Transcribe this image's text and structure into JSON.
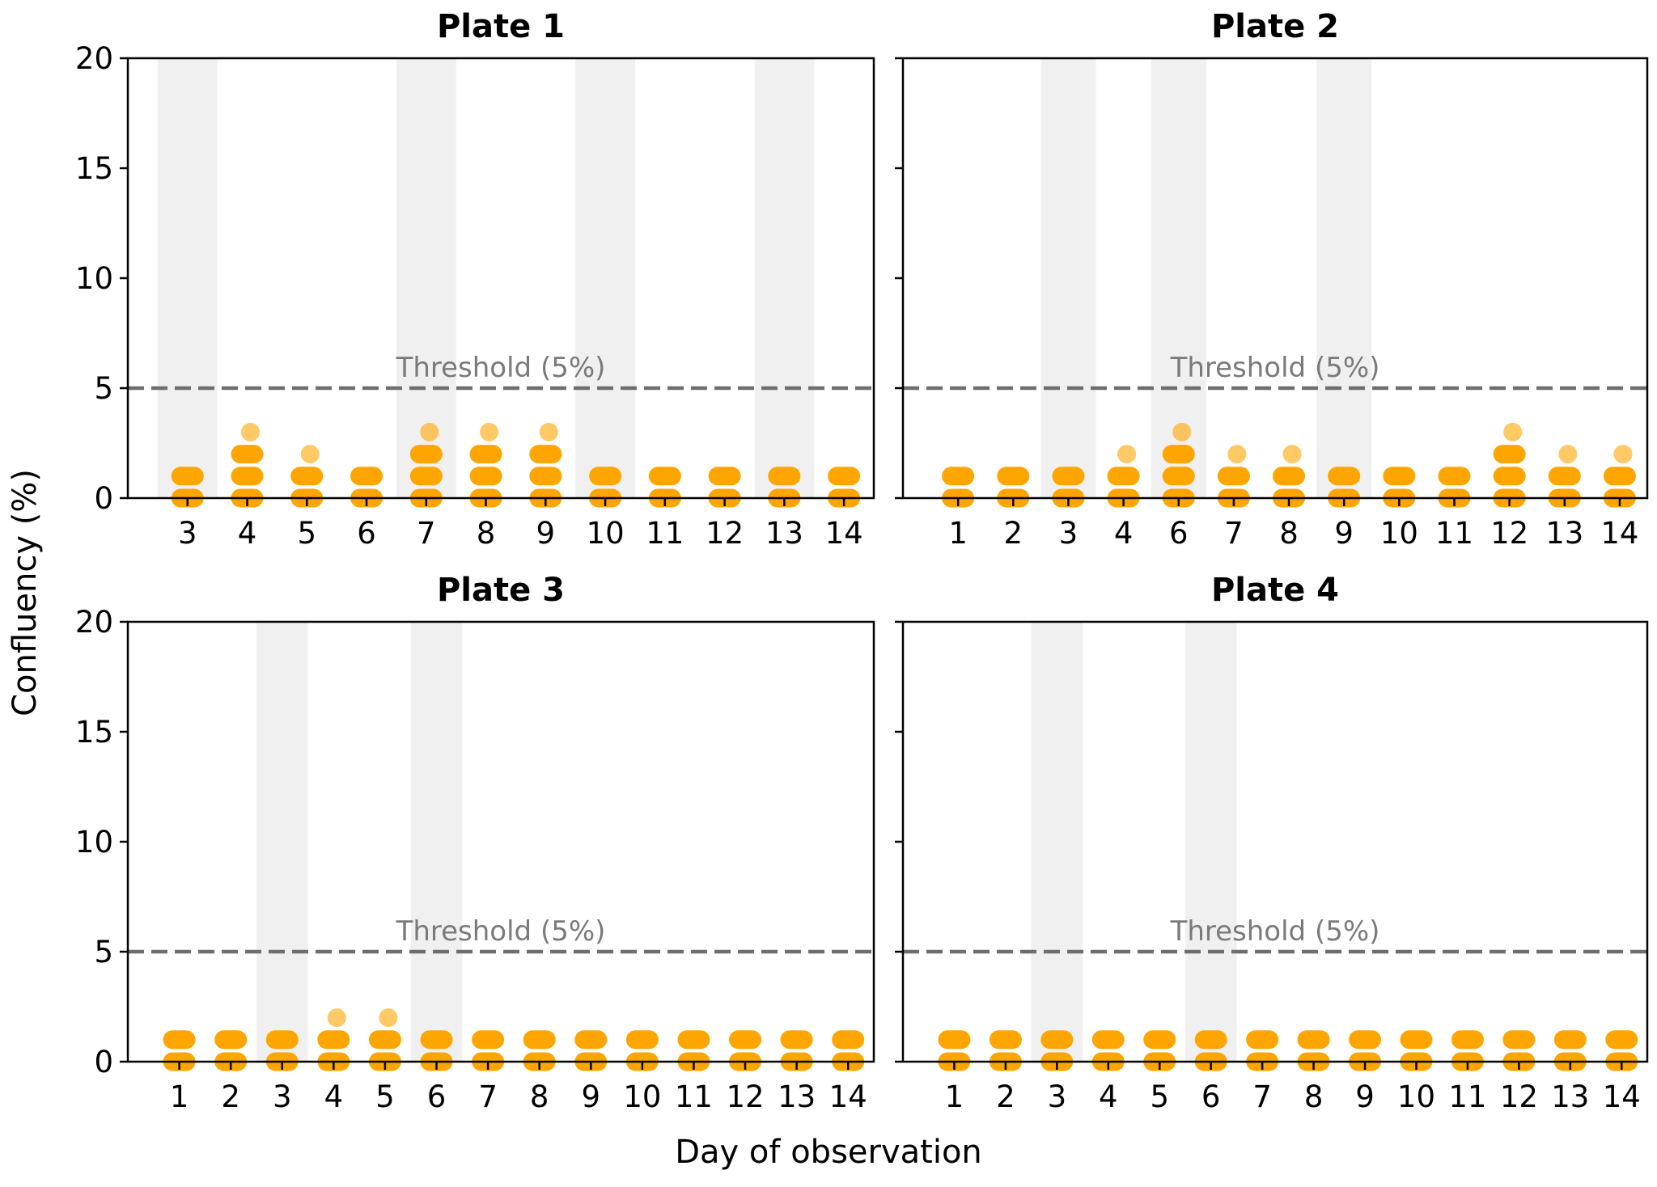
{
  "figure": {
    "xlabel": "Day of observation",
    "ylabel": "Confluency (%)"
  },
  "chart_data": [
    {
      "type": "scatter",
      "title": "Plate 1",
      "x_ticks": [
        3,
        4,
        5,
        6,
        7,
        8,
        9,
        10,
        11,
        12,
        13,
        14
      ],
      "ylim": [
        0,
        20
      ],
      "y_ticks": [
        0,
        5,
        10,
        15,
        20
      ],
      "threshold": {
        "value": 5,
        "label": "Threshold (5%)"
      },
      "shaded_days": [
        3,
        7,
        10,
        13
      ],
      "points": [
        {
          "day": 3,
          "values": [
            0,
            1
          ]
        },
        {
          "day": 4,
          "values": [
            0,
            1,
            2,
            3
          ]
        },
        {
          "day": 5,
          "values": [
            0,
            1,
            2
          ]
        },
        {
          "day": 6,
          "values": [
            0,
            1
          ]
        },
        {
          "day": 7,
          "values": [
            0,
            1,
            2,
            3
          ]
        },
        {
          "day": 8,
          "values": [
            0,
            1,
            2,
            3
          ]
        },
        {
          "day": 9,
          "values": [
            0,
            1,
            2,
            3
          ]
        },
        {
          "day": 10,
          "values": [
            0,
            1
          ]
        },
        {
          "day": 11,
          "values": [
            0,
            1
          ]
        },
        {
          "day": 12,
          "values": [
            0,
            1
          ]
        },
        {
          "day": 13,
          "values": [
            0,
            1
          ]
        },
        {
          "day": 14,
          "values": [
            0,
            1
          ]
        }
      ]
    },
    {
      "type": "scatter",
      "title": "Plate 2",
      "x_ticks": [
        1,
        2,
        3,
        4,
        6,
        7,
        8,
        9,
        10,
        11,
        12,
        13,
        14
      ],
      "ylim": [
        0,
        20
      ],
      "y_ticks": [
        0,
        5,
        10,
        15,
        20
      ],
      "threshold": {
        "value": 5,
        "label": "Threshold (5%)"
      },
      "shaded_days": [
        3,
        6,
        9
      ],
      "points": [
        {
          "day": 1,
          "values": [
            0,
            1
          ]
        },
        {
          "day": 2,
          "values": [
            0,
            1
          ]
        },
        {
          "day": 3,
          "values": [
            0,
            1
          ]
        },
        {
          "day": 4,
          "values": [
            0,
            1,
            2
          ]
        },
        {
          "day": 6,
          "values": [
            0,
            1,
            2,
            3
          ]
        },
        {
          "day": 7,
          "values": [
            0,
            1,
            2
          ]
        },
        {
          "day": 8,
          "values": [
            0,
            1,
            2
          ]
        },
        {
          "day": 9,
          "values": [
            0,
            1
          ]
        },
        {
          "day": 10,
          "values": [
            0,
            1
          ]
        },
        {
          "day": 11,
          "values": [
            0,
            1
          ]
        },
        {
          "day": 12,
          "values": [
            0,
            1,
            2,
            3
          ]
        },
        {
          "day": 13,
          "values": [
            0,
            1,
            2
          ]
        },
        {
          "day": 14,
          "values": [
            0,
            1,
            2
          ]
        }
      ]
    },
    {
      "type": "scatter",
      "title": "Plate 3",
      "x_ticks": [
        1,
        2,
        3,
        4,
        5,
        6,
        7,
        8,
        9,
        10,
        11,
        12,
        13,
        14
      ],
      "ylim": [
        0,
        20
      ],
      "y_ticks": [
        0,
        5,
        10,
        15,
        20
      ],
      "threshold": {
        "value": 5,
        "label": "Threshold (5%)"
      },
      "shaded_days": [
        3,
        6
      ],
      "points": [
        {
          "day": 1,
          "values": [
            0,
            1
          ]
        },
        {
          "day": 2,
          "values": [
            0,
            1
          ]
        },
        {
          "day": 3,
          "values": [
            0,
            1
          ]
        },
        {
          "day": 4,
          "values": [
            0,
            1,
            2
          ]
        },
        {
          "day": 5,
          "values": [
            0,
            1,
            2
          ]
        },
        {
          "day": 6,
          "values": [
            0,
            1
          ]
        },
        {
          "day": 7,
          "values": [
            0,
            1
          ]
        },
        {
          "day": 8,
          "values": [
            0,
            1
          ]
        },
        {
          "day": 9,
          "values": [
            0,
            1
          ]
        },
        {
          "day": 10,
          "values": [
            0,
            1
          ]
        },
        {
          "day": 11,
          "values": [
            0,
            1
          ]
        },
        {
          "day": 12,
          "values": [
            0,
            1
          ]
        },
        {
          "day": 13,
          "values": [
            0,
            1
          ]
        },
        {
          "day": 14,
          "values": [
            0,
            1
          ]
        }
      ]
    },
    {
      "type": "scatter",
      "title": "Plate 4",
      "x_ticks": [
        1,
        2,
        3,
        4,
        5,
        6,
        7,
        8,
        9,
        10,
        11,
        12,
        13,
        14
      ],
      "ylim": [
        0,
        20
      ],
      "y_ticks": [
        0,
        5,
        10,
        15,
        20
      ],
      "threshold": {
        "value": 5,
        "label": "Threshold (5%)"
      },
      "shaded_days": [
        3,
        6
      ],
      "points": [
        {
          "day": 1,
          "values": [
            0,
            1
          ]
        },
        {
          "day": 2,
          "values": [
            0,
            1
          ]
        },
        {
          "day": 3,
          "values": [
            0,
            1
          ]
        },
        {
          "day": 4,
          "values": [
            0,
            1
          ]
        },
        {
          "day": 5,
          "values": [
            0,
            1
          ]
        },
        {
          "day": 6,
          "values": [
            0,
            1
          ]
        },
        {
          "day": 7,
          "values": [
            0,
            1
          ]
        },
        {
          "day": 8,
          "values": [
            0,
            1
          ]
        },
        {
          "day": 9,
          "values": [
            0,
            1
          ]
        },
        {
          "day": 10,
          "values": [
            0,
            1
          ]
        },
        {
          "day": 11,
          "values": [
            0,
            1
          ]
        },
        {
          "day": 12,
          "values": [
            0,
            1
          ]
        },
        {
          "day": 13,
          "values": [
            0,
            1
          ]
        },
        {
          "day": 14,
          "values": [
            0,
            1
          ]
        }
      ]
    }
  ],
  "colors": {
    "point": "#ffa500",
    "shade": "#f0f0f0",
    "threshold": "#6e6e6e",
    "axis": "#000000"
  }
}
